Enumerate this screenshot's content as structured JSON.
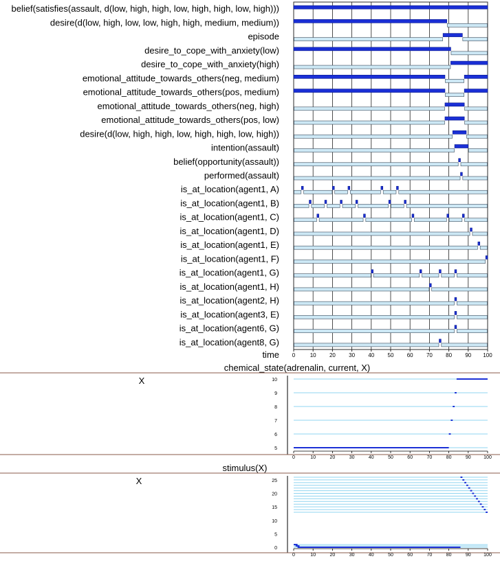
{
  "chart_data": [
    {
      "type": "timeline",
      "xlabel": "time",
      "xlim": [
        0,
        100
      ],
      "x_ticks": [
        0,
        10,
        20,
        30,
        40,
        50,
        60,
        70,
        80,
        90,
        100
      ],
      "colors": {
        "true": "#1a2fd6",
        "false": "#cde8f5",
        "frame": "#2a2a2a",
        "grid": "#222222"
      },
      "rows": [
        {
          "label": "belief(satisfies(assault, d(low, high, high, low, high, high, low, high)))",
          "true": [
            [
              0,
              100
            ]
          ]
        },
        {
          "label": "desire(d(low, high, low, low, high, high, medium, medium))",
          "true": [
            [
              0,
              79
            ]
          ]
        },
        {
          "label": "episode",
          "true": [
            [
              77,
              87
            ]
          ]
        },
        {
          "label": "desire_to_cope_with_anxiety(low)",
          "true": [
            [
              0,
              81
            ]
          ]
        },
        {
          "label": "desire_to_cope_with_anxiety(high)",
          "true": [
            [
              81,
              100
            ]
          ]
        },
        {
          "label": "emotional_attitude_towards_others(neg, medium)",
          "true": [
            [
              0,
              78
            ],
            [
              88,
              100
            ]
          ]
        },
        {
          "label": "emotional_attitude_towards_others(pos, medium)",
          "true": [
            [
              0,
              78
            ],
            [
              88,
              100
            ]
          ]
        },
        {
          "label": "emotional_attitude_towards_others(neg, high)",
          "true": [
            [
              78,
              88
            ]
          ]
        },
        {
          "label": "emotional_attitude_towards_others(pos, low)",
          "true": [
            [
              78,
              88
            ]
          ]
        },
        {
          "label": "desire(d(low, high, high, low, high, high, low, high))",
          "true": [
            [
              82,
              89
            ]
          ]
        },
        {
          "label": "intention(assault)",
          "true": [
            [
              83,
              90
            ]
          ]
        },
        {
          "label": "belief(opportunity(assault))",
          "true": [
            [
              85,
              86
            ]
          ]
        },
        {
          "label": "performed(assault)",
          "true": [
            [
              86,
              87
            ]
          ]
        },
        {
          "label": "is_at_location(agent1, A)",
          "true": [
            [
              4,
              5
            ],
            [
              20,
              21
            ],
            [
              28,
              29
            ],
            [
              45,
              46
            ],
            [
              53,
              54
            ]
          ]
        },
        {
          "label": "is_at_location(agent1, B)",
          "true": [
            [
              8,
              9
            ],
            [
              16,
              17
            ],
            [
              24,
              25
            ],
            [
              32,
              33
            ],
            [
              49,
              50
            ],
            [
              57,
              58
            ]
          ]
        },
        {
          "label": "is_at_location(agent1, C)",
          "true": [
            [
              12,
              13
            ],
            [
              36,
              37
            ],
            [
              61,
              62
            ],
            [
              79,
              80
            ],
            [
              87,
              88
            ]
          ]
        },
        {
          "label": "is_at_location(agent1, D)",
          "true": [
            [
              91,
              92
            ]
          ]
        },
        {
          "label": "is_at_location(agent1, E)",
          "true": [
            [
              95,
              96
            ]
          ]
        },
        {
          "label": "is_at_location(agent1, F)",
          "true": [
            [
              99,
              100
            ]
          ]
        },
        {
          "label": "is_at_location(agent1, G)",
          "true": [
            [
              40,
              41
            ],
            [
              65,
              66
            ],
            [
              75,
              76
            ],
            [
              83,
              84
            ]
          ]
        },
        {
          "label": "is_at_location(agent1, H)",
          "true": [
            [
              70,
              71
            ]
          ]
        },
        {
          "label": "is_at_location(agent2, H)",
          "true": [
            [
              83,
              84
            ]
          ]
        },
        {
          "label": "is_at_location(agent3, E)",
          "true": [
            [
              83,
              84
            ]
          ]
        },
        {
          "label": "is_at_location(agent6, G)",
          "true": [
            [
              83,
              84
            ]
          ]
        },
        {
          "label": "is_at_location(agent8, G)",
          "true": [
            [
              75,
              76
            ]
          ]
        }
      ]
    },
    {
      "type": "timeline",
      "title": "chemical_state(adrenalin, current, X)",
      "side_label": "X",
      "xlim": [
        0,
        100
      ],
      "x_ticks": [
        0,
        10,
        20,
        30,
        40,
        50,
        60,
        70,
        80,
        90,
        100
      ],
      "y_ticks": [
        5,
        6,
        7,
        8,
        9,
        10
      ],
      "ylim": [
        5,
        10
      ],
      "series": [
        {
          "y": 10,
          "true": [
            [
              84,
              100
            ]
          ]
        },
        {
          "y": 9,
          "true": [
            [
              83,
              84
            ]
          ]
        },
        {
          "y": 8,
          "true": [
            [
              82,
              83
            ]
          ]
        },
        {
          "y": 7,
          "true": [
            [
              81,
              82
            ]
          ]
        },
        {
          "y": 6,
          "true": [
            [
              80,
              81
            ]
          ]
        },
        {
          "y": 5,
          "true": [
            [
              0,
              80
            ]
          ]
        }
      ]
    },
    {
      "type": "timeline",
      "title": "stimulus(X)",
      "side_label": "X",
      "xlim": [
        0,
        100
      ],
      "x_ticks": [
        0,
        10,
        20,
        30,
        40,
        50,
        60,
        70,
        80,
        90,
        100
      ],
      "y_ticks": [
        0,
        5,
        10,
        15,
        20,
        25
      ],
      "ylim": [
        0,
        26
      ],
      "series": [
        {
          "y": 26,
          "true": [
            [
              86,
              87
            ]
          ]
        },
        {
          "y": 25,
          "true": [
            [
              87,
              88
            ]
          ]
        },
        {
          "y": 24,
          "true": [
            [
              88,
              89
            ]
          ]
        },
        {
          "y": 23,
          "true": [
            [
              89,
              90
            ]
          ]
        },
        {
          "y": 22,
          "true": [
            [
              90,
              91
            ]
          ]
        },
        {
          "y": 21,
          "true": [
            [
              91,
              92
            ]
          ]
        },
        {
          "y": 20,
          "true": [
            [
              92,
              93
            ]
          ]
        },
        {
          "y": 19,
          "true": [
            [
              93,
              94
            ]
          ]
        },
        {
          "y": 18,
          "true": [
            [
              94,
              95
            ]
          ]
        },
        {
          "y": 17,
          "true": [
            [
              95,
              96
            ]
          ]
        },
        {
          "y": 16,
          "true": [
            [
              96,
              97
            ]
          ]
        },
        {
          "y": 15,
          "true": [
            [
              97,
              98
            ]
          ]
        },
        {
          "y": 14,
          "true": [
            [
              98,
              99
            ]
          ]
        },
        {
          "y": 13,
          "true": [
            [
              99,
              100
            ]
          ]
        },
        {
          "y": 1,
          "true": [
            [
              0,
              2
            ]
          ]
        },
        {
          "y": 0.5,
          "true": [
            [
              1,
              3
            ]
          ]
        },
        {
          "y": 0,
          "true": [
            [
              2,
              86
            ]
          ]
        }
      ]
    }
  ]
}
